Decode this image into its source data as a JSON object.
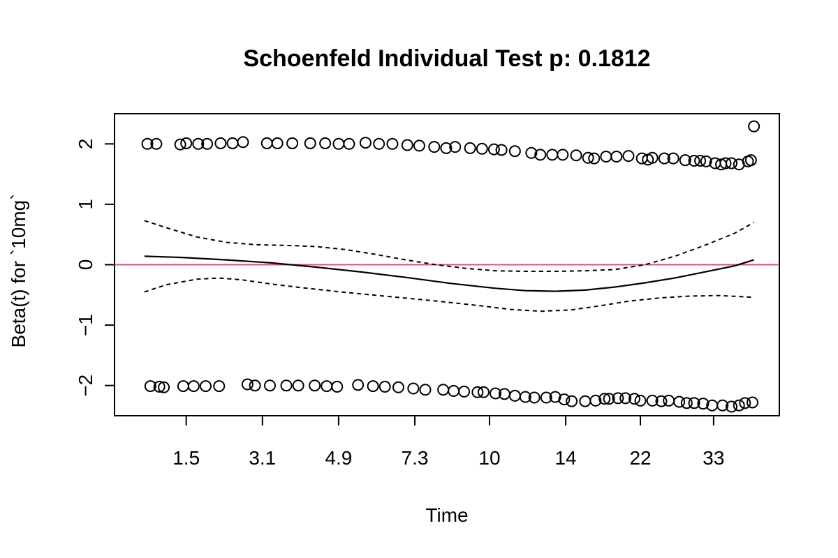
{
  "chart_data": {
    "type": "scatter",
    "title": "Schoenfeld Individual Test p: 0.1812",
    "xlabel": "Time",
    "ylabel": "Beta(t) for `10mg`",
    "xlim": [
      0,
      40
    ],
    "ylim": [
      -2.5,
      2.5
    ],
    "x_ticks": [
      {
        "pos": 4.3,
        "label": "1.5"
      },
      {
        "pos": 9.4,
        "label": "3.1"
      },
      {
        "pos": 14.5,
        "label": "4.9"
      },
      {
        "pos": 19.6,
        "label": "7.3"
      },
      {
        "pos": 24.6,
        "label": "10"
      },
      {
        "pos": 29.7,
        "label": "14"
      },
      {
        "pos": 34.7,
        "label": "22"
      },
      {
        "pos": 39.6,
        "label": "33"
      }
    ],
    "y_ticks": [
      {
        "value": -2,
        "label": "−2"
      },
      {
        "value": -1,
        "label": "−1"
      },
      {
        "value": 0,
        "label": "0"
      },
      {
        "value": 1,
        "label": "1"
      },
      {
        "value": 2,
        "label": "2"
      }
    ],
    "reference_line": {
      "y": 0,
      "color": "#DF536B"
    },
    "point_color": "#000000",
    "points_upper": [
      [
        1.7,
        2.0
      ],
      [
        2.3,
        2.0
      ],
      [
        3.9,
        1.99
      ],
      [
        4.3,
        2.01
      ],
      [
        5.1,
        2.0
      ],
      [
        5.7,
        2.0
      ],
      [
        6.6,
        2.01
      ],
      [
        7.4,
        2.01
      ],
      [
        8.1,
        2.03
      ],
      [
        9.7,
        2.01
      ],
      [
        10.4,
        2.01
      ],
      [
        11.4,
        2.01
      ],
      [
        12.6,
        2.01
      ],
      [
        13.6,
        2.01
      ],
      [
        14.5,
        2.0
      ],
      [
        15.2,
        2.0
      ],
      [
        16.3,
        2.02
      ],
      [
        17.2,
        2.0
      ],
      [
        18.1,
        2.0
      ],
      [
        19.1,
        1.98
      ],
      [
        19.9,
        1.97
      ],
      [
        20.9,
        1.95
      ],
      [
        21.7,
        1.93
      ],
      [
        22.3,
        1.95
      ],
      [
        23.3,
        1.93
      ],
      [
        24.1,
        1.92
      ],
      [
        24.9,
        1.91
      ],
      [
        25.4,
        1.9
      ],
      [
        26.3,
        1.88
      ],
      [
        27.4,
        1.85
      ],
      [
        28.0,
        1.82
      ],
      [
        28.8,
        1.82
      ],
      [
        29.5,
        1.82
      ],
      [
        30.4,
        1.81
      ],
      [
        31.2,
        1.77
      ],
      [
        31.6,
        1.76
      ],
      [
        32.4,
        1.79
      ],
      [
        33.1,
        1.79
      ],
      [
        33.9,
        1.8
      ],
      [
        34.8,
        1.76
      ],
      [
        35.2,
        1.74
      ],
      [
        35.5,
        1.77
      ],
      [
        36.3,
        1.76
      ],
      [
        36.9,
        1.76
      ],
      [
        37.7,
        1.73
      ],
      [
        38.3,
        1.72
      ],
      [
        38.7,
        1.72
      ],
      [
        39.1,
        1.71
      ],
      [
        39.7,
        1.68
      ],
      [
        40.1,
        1.66
      ],
      [
        40.4,
        1.68
      ],
      [
        40.8,
        1.68
      ],
      [
        41.3,
        1.66
      ],
      [
        41.9,
        1.71
      ],
      [
        42.1,
        1.73
      ],
      [
        42.3,
        2.29
      ]
    ],
    "points_lower": [
      [
        1.9,
        -2.01
      ],
      [
        2.5,
        -2.02
      ],
      [
        2.8,
        -2.03
      ],
      [
        4.1,
        -2.01
      ],
      [
        4.8,
        -2.01
      ],
      [
        5.6,
        -2.01
      ],
      [
        6.5,
        -2.01
      ],
      [
        8.4,
        -1.98
      ],
      [
        8.9,
        -2.0
      ],
      [
        9.9,
        -2.0
      ],
      [
        11.0,
        -2.0
      ],
      [
        11.8,
        -2.0
      ],
      [
        12.9,
        -2.0
      ],
      [
        13.7,
        -2.01
      ],
      [
        14.4,
        -2.02
      ],
      [
        15.8,
        -1.99
      ],
      [
        16.8,
        -2.01
      ],
      [
        17.6,
        -2.02
      ],
      [
        18.5,
        -2.03
      ],
      [
        19.5,
        -2.05
      ],
      [
        20.3,
        -2.07
      ],
      [
        21.5,
        -2.07
      ],
      [
        22.2,
        -2.09
      ],
      [
        22.9,
        -2.1
      ],
      [
        23.8,
        -2.11
      ],
      [
        24.2,
        -2.11
      ],
      [
        25.0,
        -2.13
      ],
      [
        25.6,
        -2.14
      ],
      [
        26.3,
        -2.17
      ],
      [
        27.0,
        -2.19
      ],
      [
        27.6,
        -2.2
      ],
      [
        28.4,
        -2.2
      ],
      [
        29.0,
        -2.19
      ],
      [
        29.6,
        -2.23
      ],
      [
        30.1,
        -2.26
      ],
      [
        31.0,
        -2.26
      ],
      [
        31.7,
        -2.25
      ],
      [
        32.3,
        -2.22
      ],
      [
        32.6,
        -2.22
      ],
      [
        33.2,
        -2.21
      ],
      [
        33.7,
        -2.21
      ],
      [
        34.3,
        -2.22
      ],
      [
        34.7,
        -2.25
      ],
      [
        35.5,
        -2.25
      ],
      [
        36.1,
        -2.26
      ],
      [
        36.6,
        -2.25
      ],
      [
        37.3,
        -2.27
      ],
      [
        37.8,
        -2.29
      ],
      [
        38.3,
        -2.29
      ],
      [
        38.9,
        -2.3
      ],
      [
        39.5,
        -2.33
      ],
      [
        40.2,
        -2.33
      ],
      [
        40.8,
        -2.35
      ],
      [
        41.3,
        -2.33
      ],
      [
        41.7,
        -2.29
      ],
      [
        42.2,
        -2.28
      ]
    ],
    "fit_line": [
      [
        1.5,
        0.14
      ],
      [
        4,
        0.12
      ],
      [
        7,
        0.08
      ],
      [
        10,
        0.03
      ],
      [
        13,
        -0.04
      ],
      [
        16,
        -0.12
      ],
      [
        19,
        -0.21
      ],
      [
        22,
        -0.31
      ],
      [
        25,
        -0.39
      ],
      [
        27,
        -0.43
      ],
      [
        29,
        -0.44
      ],
      [
        31,
        -0.42
      ],
      [
        33,
        -0.37
      ],
      [
        35,
        -0.3
      ],
      [
        37,
        -0.22
      ],
      [
        39,
        -0.12
      ],
      [
        41,
        -0.02
      ],
      [
        42.3,
        0.08
      ]
    ],
    "upper_band": [
      [
        1.5,
        0.73
      ],
      [
        3,
        0.61
      ],
      [
        5,
        0.46
      ],
      [
        7,
        0.37
      ],
      [
        9,
        0.33
      ],
      [
        11,
        0.32
      ],
      [
        13,
        0.3
      ],
      [
        15,
        0.25
      ],
      [
        17,
        0.17
      ],
      [
        19,
        0.08
      ],
      [
        21,
        0.0
      ],
      [
        23,
        -0.06
      ],
      [
        25,
        -0.1
      ],
      [
        27,
        -0.11
      ],
      [
        29,
        -0.11
      ],
      [
        31,
        -0.1
      ],
      [
        33,
        -0.08
      ],
      [
        35,
        0.0
      ],
      [
        37,
        0.14
      ],
      [
        39,
        0.32
      ],
      [
        41,
        0.52
      ],
      [
        42.3,
        0.7
      ]
    ],
    "lower_band": [
      [
        1.5,
        -0.45
      ],
      [
        3,
        -0.33
      ],
      [
        5,
        -0.24
      ],
      [
        6.5,
        -0.22
      ],
      [
        8,
        -0.25
      ],
      [
        10,
        -0.32
      ],
      [
        12,
        -0.38
      ],
      [
        15,
        -0.46
      ],
      [
        18,
        -0.53
      ],
      [
        21,
        -0.6
      ],
      [
        24,
        -0.68
      ],
      [
        26,
        -0.74
      ],
      [
        28,
        -0.77
      ],
      [
        30,
        -0.75
      ],
      [
        32,
        -0.68
      ],
      [
        34,
        -0.6
      ],
      [
        36,
        -0.55
      ],
      [
        38,
        -0.52
      ],
      [
        40,
        -0.51
      ],
      [
        42.3,
        -0.54
      ]
    ]
  }
}
